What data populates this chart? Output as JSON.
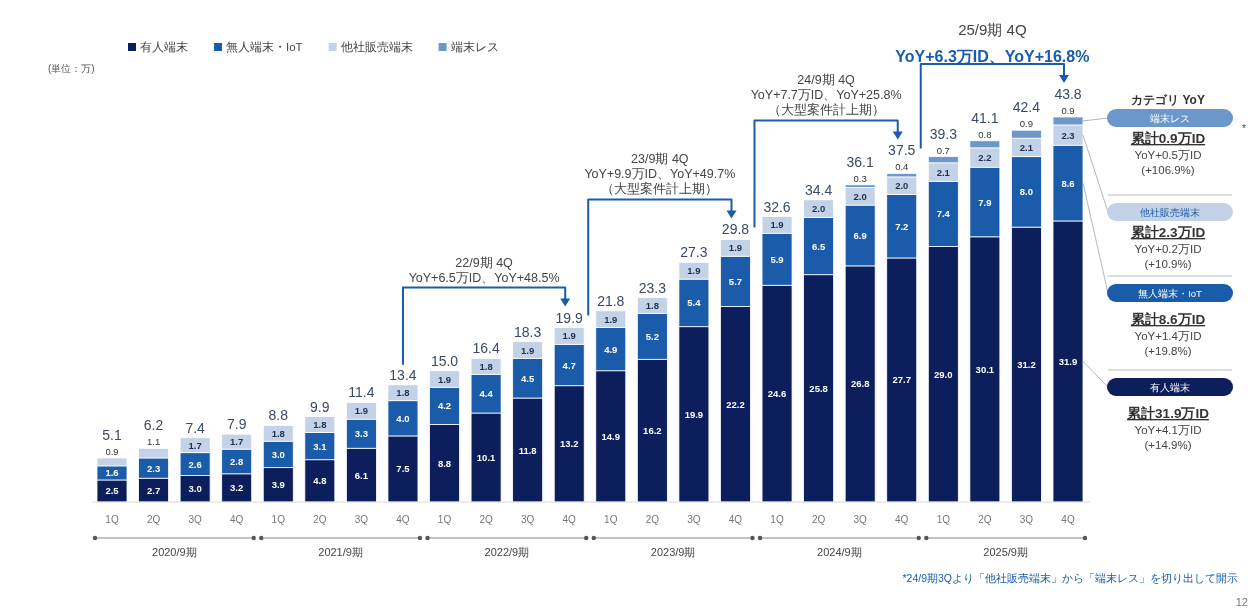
{
  "chart_data": {
    "type": "bar",
    "stacked": true,
    "legend": "top left",
    "categories": [
      "1Q",
      "2Q",
      "3Q",
      "4Q",
      "1Q",
      "2Q",
      "3Q",
      "4Q",
      "1Q",
      "2Q",
      "3Q",
      "4Q",
      "1Q",
      "2Q",
      "3Q",
      "4Q",
      "1Q",
      "2Q",
      "3Q",
      "4Q",
      "1Q",
      "2Q",
      "3Q",
      "4Q"
    ],
    "series": [
      {
        "name": "有人端末",
        "color": "#0c1f5c",
        "values": [
          2.5,
          2.7,
          3.0,
          3.2,
          3.9,
          4.8,
          6.1,
          7.5,
          8.8,
          10.1,
          11.8,
          13.2,
          14.9,
          16.2,
          19.9,
          22.2,
          24.6,
          25.8,
          26.8,
          27.7,
          29.0,
          30.1,
          31.2,
          31.9
        ],
        "value_labels": [
          "2.5",
          "2.7",
          "3.0",
          "3.2",
          "3.9",
          "4.8",
          "6.1",
          "7.5",
          "8.8",
          "10.1",
          "11.8",
          "13.2",
          "14.9",
          "16.2",
          "19.9",
          "22.2",
          "24.6",
          "25.8",
          "26.8",
          "27.7",
          "29.0",
          "30.1",
          "31.2",
          "31.9"
        ]
      },
      {
        "name": "無人端末・IoT",
        "color": "#1a5caa",
        "values": [
          1.6,
          2.3,
          2.6,
          2.8,
          3.0,
          3.1,
          3.3,
          4.0,
          4.2,
          4.4,
          4.5,
          4.7,
          4.9,
          5.2,
          5.4,
          5.7,
          5.9,
          6.5,
          6.9,
          7.2,
          7.4,
          7.9,
          8.0,
          8.6
        ],
        "value_labels": [
          "1.6",
          "2.3",
          "2.6",
          "2.8",
          "3.0",
          "3.1",
          "3.3",
          "4.0",
          "4.2",
          "4.4",
          "4.5",
          "4.7",
          "4.9",
          "5.2",
          "5.4",
          "5.7",
          "5.9",
          "6.5",
          "6.9",
          "7.2",
          "7.4",
          "7.9",
          "8.0",
          "8.6"
        ]
      },
      {
        "name": "他社販売端末",
        "color": "#c3d2e6",
        "values": [
          0.9,
          1.1,
          1.7,
          1.7,
          1.8,
          1.8,
          1.9,
          1.8,
          1.9,
          1.8,
          1.9,
          1.9,
          1.9,
          1.8,
          1.9,
          1.9,
          1.9,
          2.0,
          2.0,
          2.0,
          2.1,
          2.2,
          2.1,
          2.3
        ],
        "value_labels": [
          "0.9",
          "1.1",
          "1.7",
          "1.7",
          "1.8",
          "1.8",
          "1.9",
          "1.8",
          "1.9",
          "1.8",
          "1.9",
          "1.9",
          "1.9",
          "1.8",
          "1.9",
          "1.9",
          "1.9",
          "2.0",
          "2.0",
          "2.0",
          "2.1",
          "2.2",
          "2.1",
          "2.3"
        ]
      },
      {
        "name": "端末レス",
        "color": "#6b97c9",
        "values": [
          null,
          null,
          null,
          null,
          null,
          null,
          null,
          null,
          null,
          null,
          null,
          null,
          null,
          null,
          null,
          null,
          null,
          null,
          0.3,
          0.4,
          0.7,
          0.8,
          0.9,
          0.9
        ],
        "value_labels": [
          null,
          null,
          null,
          null,
          null,
          null,
          null,
          null,
          null,
          null,
          null,
          null,
          null,
          null,
          null,
          null,
          null,
          null,
          "0.3",
          "0.4",
          "0.7",
          "0.8",
          "0.9",
          "0.9"
        ]
      }
    ],
    "totals": [
      "5.1",
      "6.2",
      "7.4",
      "7.9",
      "8.8",
      "9.9",
      "11.4",
      "13.4",
      "15.0",
      "16.4",
      "18.3",
      "19.9",
      "21.8",
      "23.3",
      "27.3",
      "29.8",
      "32.6",
      "34.4",
      "36.1",
      "37.5",
      "39.3",
      "41.1",
      "42.4",
      "43.8"
    ],
    "annotations": [
      "(単位：万)",
      "2020/9期",
      "2021/9期",
      "2022/9期",
      "2023/9期",
      "2024/9期",
      "2025/9期",
      "22/9期 4Q\nYoY+6.5万ID、YoY+48.5%",
      "23/9期 4Q\nYoY+9.9万ID、YoY+49.7%\n（大型案件計上期）",
      "24/9期 4Q\nYoY+7.7万ID、YoY+25.8%\n（大型案件計上期）",
      "25/9期 4Q\nYoY+6.3万ID、YoY+16.8%",
      "カテゴリ YoY",
      "端末レス",
      "累計0.9万ID",
      "YoY+0.5万ID",
      "(+106.9%)",
      "他社販売端末",
      "累計2.3万ID",
      "YoY+0.2万ID",
      "(+10.9%)",
      "無人端末・IoT",
      "累計8.6万ID",
      "YoY+1.4万ID",
      "(+19.8%)",
      "有人端末",
      "累計31.9万ID",
      "YoY+4.1万ID",
      "(+14.9%)",
      "*",
      "*24/9期3Qより「他社販売端末」から「端末レス」を切り出して開示",
      "12"
    ]
  }
}
